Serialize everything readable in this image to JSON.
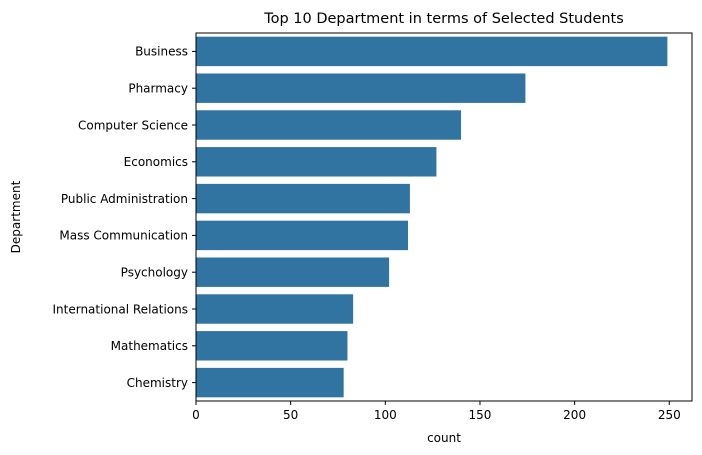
{
  "chart_data": {
    "type": "bar",
    "orientation": "horizontal",
    "title": "Top 10 Department in terms of Selected Students",
    "xlabel": "count",
    "ylabel": "Department",
    "categories": [
      "Business",
      "Pharmacy",
      "Computer Science",
      "Economics",
      "Public Administration",
      "Mass Communication",
      "Psychology",
      "International Relations",
      "Mathematics",
      "Chemistry"
    ],
    "values": [
      249,
      174,
      140,
      127,
      113,
      112,
      102,
      83,
      80,
      78
    ],
    "xlim": [
      0,
      262
    ],
    "xticks": [
      0,
      50,
      100,
      150,
      200,
      250
    ],
    "grid": false,
    "bar_color": "#3274a1"
  }
}
